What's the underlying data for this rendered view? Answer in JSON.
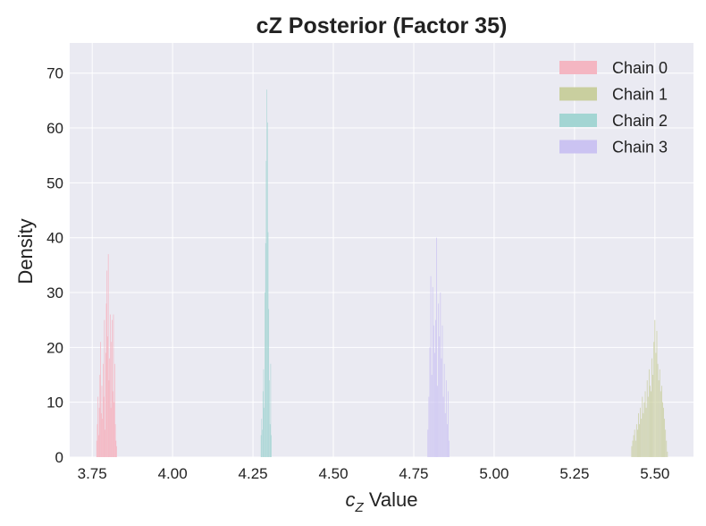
{
  "chart_data": {
    "type": "histogram",
    "title": "cZ Posterior (Factor 35)",
    "xlabel_base": "c",
    "xlabel_sub": "Z",
    "xlabel_suffix": " Value",
    "ylabel": "Density",
    "xlim": [
      3.68,
      5.62
    ],
    "ylim": [
      0,
      75.5
    ],
    "xticks": [
      3.75,
      4.0,
      4.25,
      4.5,
      4.75,
      5.0,
      5.25,
      5.5
    ],
    "xtick_labels": [
      "3.75",
      "4.00",
      "4.25",
      "4.50",
      "4.75",
      "5.00",
      "5.25",
      "5.50"
    ],
    "yticks": [
      0,
      10,
      20,
      30,
      40,
      50,
      60,
      70
    ],
    "ytick_labels": [
      "0",
      "10",
      "20",
      "30",
      "40",
      "50",
      "60",
      "70"
    ],
    "grid": true,
    "legend_position": "top-right",
    "series": [
      {
        "name": "Chain 0",
        "color": "#f4b6c2",
        "bin_width": 0.0021,
        "x": [
          3.764,
          3.766,
          3.768,
          3.77,
          3.772,
          3.774,
          3.776,
          3.778,
          3.78,
          3.782,
          3.784,
          3.786,
          3.788,
          3.79,
          3.792,
          3.794,
          3.796,
          3.798,
          3.8,
          3.802,
          3.804,
          3.806,
          3.808,
          3.81,
          3.812,
          3.814,
          3.816,
          3.818,
          3.82,
          3.822,
          3.824,
          3.826
        ],
        "values": [
          3,
          6,
          11,
          4,
          9,
          15,
          21,
          8,
          13,
          7,
          17,
          11,
          25,
          5,
          19,
          28,
          34,
          22,
          37,
          14,
          18,
          26,
          9,
          21,
          25,
          12,
          26,
          10,
          17,
          6,
          3,
          2
        ]
      },
      {
        "name": "Chain 1",
        "color": "#c9cf9f",
        "bin_width": 0.0021,
        "x": [
          5.428,
          5.431,
          5.434,
          5.437,
          5.44,
          5.443,
          5.446,
          5.449,
          5.452,
          5.455,
          5.458,
          5.461,
          5.464,
          5.467,
          5.47,
          5.473,
          5.476,
          5.479,
          5.482,
          5.485,
          5.488,
          5.491,
          5.494,
          5.497,
          5.5,
          5.503,
          5.506,
          5.509,
          5.512,
          5.515,
          5.518,
          5.521,
          5.524,
          5.527,
          5.53,
          5.533,
          5.536,
          5.539
        ],
        "values": [
          2,
          3,
          4,
          5,
          3,
          6,
          5,
          8,
          6,
          9,
          7,
          11,
          8,
          10,
          12,
          9,
          14,
          11,
          16,
          13,
          12,
          18,
          15,
          21,
          25,
          19,
          23,
          17,
          14,
          16,
          12,
          13,
          10,
          9,
          7,
          5,
          3,
          1
        ]
      },
      {
        "name": "Chain 2",
        "color": "#a3d5d3",
        "bin_width": 0.0015,
        "x": [
          4.275,
          4.277,
          4.279,
          4.281,
          4.283,
          4.285,
          4.287,
          4.289,
          4.291,
          4.293,
          4.295,
          4.297,
          4.299,
          4.301,
          4.303,
          4.305,
          4.307
        ],
        "values": [
          4,
          7,
          5,
          12,
          16,
          9,
          30,
          39,
          54,
          67,
          61,
          41,
          27,
          14,
          6,
          17,
          4
        ]
      },
      {
        "name": "Chain 3",
        "color": "#cbc3f2",
        "bin_width": 0.0021,
        "x": [
          4.794,
          4.797,
          4.8,
          4.803,
          4.806,
          4.809,
          4.812,
          4.815,
          4.818,
          4.821,
          4.824,
          4.827,
          4.83,
          4.833,
          4.836,
          4.839,
          4.842,
          4.845,
          4.848,
          4.851,
          4.854,
          4.857,
          4.86
        ],
        "values": [
          5,
          11,
          20,
          33,
          15,
          31,
          24,
          19,
          25,
          40,
          13,
          28,
          22,
          30,
          18,
          24,
          11,
          17,
          8,
          14,
          6,
          12,
          3
        ]
      }
    ]
  }
}
